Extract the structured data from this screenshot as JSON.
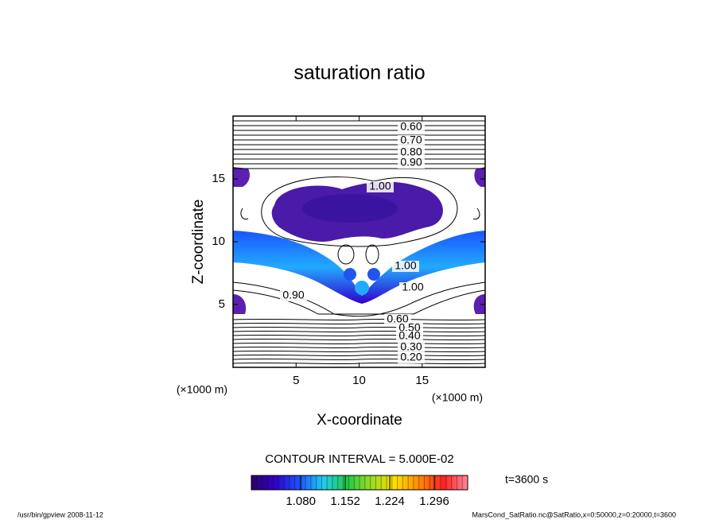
{
  "chart_data": {
    "type": "contour",
    "title": "saturation ratio",
    "x_label": "X-coordinate",
    "y_label": "Z-coordinate",
    "x_unit": "(×1000 m)",
    "y_unit": "(×1000 m)",
    "xlim": [
      0,
      20
    ],
    "xticks": [
      5,
      10,
      15
    ],
    "ylim": [
      0,
      20
    ],
    "yticks": [
      5,
      10,
      15
    ],
    "contour_labels": [
      "0.60",
      "0.70",
      "0.80",
      "0.90",
      "1.00",
      "1.00",
      "1.00",
      "0.90",
      "0.60",
      "0.50",
      "0.40",
      "0.30",
      "0.20"
    ],
    "contour_interval": "CONTOUR INTERVAL = 5.000E-02",
    "time_label": "t=3600 s",
    "colorbar": {
      "lim": [
        1.0,
        1.35
      ],
      "ticks": [
        {
          "value": 1.08,
          "label": "1.080"
        },
        {
          "value": 1.152,
          "label": "1.152"
        },
        {
          "value": 1.224,
          "label": "1.224"
        },
        {
          "value": 1.296,
          "label": "1.296"
        }
      ],
      "colors": [
        "#2a006a",
        "#3300cc",
        "#1a55ff",
        "#22ccee",
        "#22cc44",
        "#99dd22",
        "#ffdd00",
        "#ff8800",
        "#ff2222",
        "#ff8899"
      ]
    },
    "footer_left": "/usr/bin/gpview   2008-11-12",
    "footer_right": "MarsCond_SatRatio.nc@SatRatio,x=0:50000,z=0:20000,t=3600"
  }
}
